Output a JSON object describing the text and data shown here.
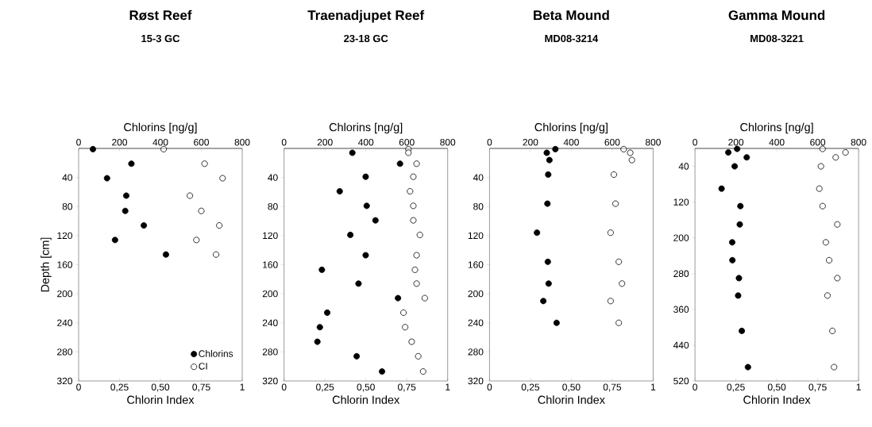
{
  "chart_data": [
    {
      "type": "scatter",
      "title": "Røst Reef",
      "subtitle": "15-3 GC",
      "xlabel": "Chlorin Index",
      "x2label": "Chlorins [ng/g]",
      "ylabel": "Depth [cm]",
      "xlim": [
        0,
        1
      ],
      "xticks": [
        0,
        {
          "value": 0.25,
          "label": "0,25"
        },
        {
          "value": 0.5,
          "label": "0,50"
        },
        {
          "value": 0.75,
          "label": "0,75"
        },
        1
      ],
      "x2lim": [
        0,
        800
      ],
      "x2ticks": [
        0,
        200,
        400,
        600,
        800
      ],
      "ylim": [
        320,
        0
      ],
      "yticks": [
        40,
        80,
        120,
        160,
        200,
        240,
        280,
        320
      ],
      "legend": "bottom right",
      "series": [
        {
          "name": "Chlorins",
          "color": "#000000",
          "axis": "x2",
          "x": [
            70,
            258,
            139,
            233,
            228,
            319,
            178,
            427
          ],
          "values": [
            1,
            21,
            41,
            65,
            86,
            106,
            126,
            146
          ]
        },
        {
          "name": "CI",
          "color": "#ffffff",
          "x": [
            0.52,
            0.77,
            0.88,
            0.68,
            0.75,
            0.86,
            0.72,
            0.84
          ],
          "values": [
            1,
            21,
            41,
            65,
            86,
            106,
            126,
            146
          ]
        }
      ]
    },
    {
      "type": "scatter",
      "title": "Traenadjupet Reef",
      "subtitle": "23-18 GC",
      "xlabel": "Chlorin Index",
      "x2label": "Chlorins [ng/g]",
      "xlim": [
        0,
        1
      ],
      "xticks": [
        0,
        {
          "value": 0.25,
          "label": "0,25"
        },
        {
          "value": 0.5,
          "label": "0,50"
        },
        {
          "value": 0.75,
          "label": "0,75"
        },
        1
      ],
      "x2lim": [
        0,
        800
      ],
      "x2ticks": [
        0,
        200,
        400,
        600,
        800
      ],
      "ylim": [
        320,
        0
      ],
      "yticks": [
        40,
        80,
        120,
        160,
        200,
        240,
        280,
        320
      ],
      "series": [
        {
          "color": "#000000",
          "axis": "x2",
          "x": [
            334,
            567,
            399,
            272,
            404,
            447,
            324,
            399,
            185,
            364,
            557,
            211,
            175,
            163,
            355,
            479
          ],
          "values": [
            6,
            21,
            39,
            59,
            79,
            99,
            119,
            147,
            167,
            186,
            206,
            226,
            246,
            266,
            286,
            307
          ]
        },
        {
          "color": "#ffffff",
          "x": [
            0.76,
            0.76,
            0.81,
            0.79,
            0.77,
            0.79,
            0.79,
            0.83,
            0.81,
            0.8,
            0.81,
            0.86,
            0.73,
            0.74,
            0.78,
            0.82,
            0.85
          ],
          "values": [
            1,
            6,
            21,
            39,
            59,
            79,
            99,
            119,
            147,
            167,
            186,
            206,
            226,
            246,
            266,
            286,
            307
          ]
        }
      ]
    },
    {
      "type": "scatter",
      "title": "Beta Mound",
      "subtitle": "MD08-3214",
      "xlabel": "Chlorin Index",
      "x2label": "Chlorins [ng/g]",
      "xlim": [
        0,
        1
      ],
      "xticks": [
        0,
        {
          "value": 0.25,
          "label": "0,25"
        },
        {
          "value": 0.5,
          "label": "0,50"
        },
        {
          "value": 0.75,
          "label": "0,75"
        },
        1
      ],
      "x2lim": [
        0,
        800
      ],
      "x2ticks": [
        0,
        200,
        400,
        600,
        800
      ],
      "ylim": [
        320,
        0
      ],
      "yticks": [
        40,
        80,
        120,
        160,
        200,
        240,
        280,
        320
      ],
      "series": [
        {
          "color": "#000000",
          "axis": "x2",
          "x": [
            322,
            280,
            293,
            287,
            283,
            232,
            285,
            289,
            263,
            328
          ],
          "values": [
            1,
            6,
            16,
            36,
            76,
            116,
            156,
            186,
            210,
            240
          ]
        },
        {
          "color": "#ffffff",
          "x": [
            0.82,
            0.86,
            0.87,
            0.76,
            0.77,
            0.74,
            0.79,
            0.81,
            0.74,
            0.79
          ],
          "values": [
            1,
            6,
            16,
            36,
            76,
            116,
            156,
            186,
            210,
            240
          ]
        }
      ]
    },
    {
      "type": "scatter",
      "title": "Gamma Mound",
      "subtitle": "MD08-3221",
      "xlabel": "Chlorin Index",
      "x2label": "Chlorins [ng/g]",
      "xlim": [
        0,
        1
      ],
      "xticks": [
        0,
        {
          "value": 0.25,
          "label": "0,25"
        },
        {
          "value": 0.5,
          "label": "0,50"
        },
        {
          "value": 0.75,
          "label": "0,75"
        },
        1
      ],
      "x2lim": [
        0,
        800
      ],
      "x2ticks": [
        0,
        200,
        400,
        600,
        800
      ],
      "ylim": [
        520,
        0
      ],
      "yticks": [
        40,
        120,
        200,
        280,
        360,
        440,
        520
      ],
      "series": [
        {
          "color": "#000000",
          "axis": "x2",
          "x": [
            206,
            163,
            253,
            194,
            130,
            222,
            219,
            182,
            183,
            215,
            211,
            229,
            259
          ],
          "values": [
            1,
            9,
            20,
            40,
            90,
            129,
            170,
            210,
            250,
            290,
            329,
            408,
            489
          ]
        },
        {
          "color": "#ffffff",
          "x": [
            0.78,
            0.92,
            0.86,
            0.77,
            0.76,
            0.78,
            0.87,
            0.8,
            0.82,
            0.87,
            0.81,
            0.84,
            0.85
          ],
          "values": [
            1,
            9,
            20,
            40,
            90,
            129,
            170,
            210,
            250,
            290,
            329,
            408,
            489
          ]
        }
      ]
    }
  ]
}
